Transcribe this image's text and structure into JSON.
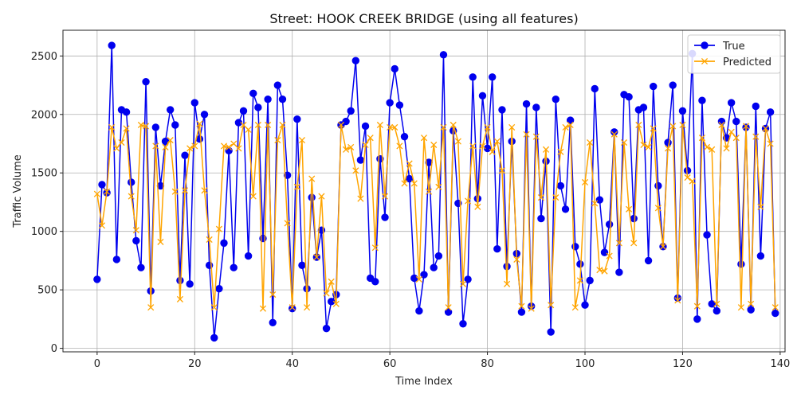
{
  "chart_data": {
    "type": "line",
    "title": "Street: HOOK CREEK BRIDGE (using all features)",
    "xlabel": "Time Index",
    "ylabel": "Traffic Volume",
    "xlim": [
      -7,
      141
    ],
    "ylim": [
      -30,
      2720
    ],
    "xticks": [
      0,
      20,
      40,
      60,
      80,
      100,
      120,
      140
    ],
    "yticks": [
      0,
      500,
      1000,
      1500,
      2000,
      2500
    ],
    "grid": true,
    "legend_position": "top-right",
    "series": [
      {
        "name": "True",
        "color": "#0000ee",
        "marker": "circle",
        "values": [
          590,
          1400,
          1330,
          2590,
          760,
          2040,
          2020,
          1420,
          920,
          690,
          2280,
          490,
          1890,
          1390,
          1770,
          2040,
          1910,
          580,
          1650,
          550,
          2100,
          1790,
          2000,
          710,
          90,
          510,
          900,
          1690,
          690,
          1930,
          2030,
          790,
          2180,
          2060,
          940,
          2130,
          220,
          2250,
          2130,
          1480,
          340,
          1960,
          710,
          510,
          1290,
          780,
          1010,
          170,
          400,
          460,
          1910,
          1940,
          2030,
          2460,
          1610,
          1900,
          600,
          570,
          1620,
          1120,
          2100,
          2390,
          2080,
          1810,
          1450,
          600,
          320,
          630,
          1590,
          690,
          790,
          2510,
          310,
          1860,
          1240,
          210,
          590,
          2320,
          1280,
          2160,
          1710,
          2320,
          850,
          2040,
          700,
          1770,
          810,
          310,
          2090,
          360,
          2060,
          1110,
          1600,
          140,
          2130,
          1390,
          1190,
          1950,
          870,
          720,
          370,
          580,
          2220,
          1270,
          820,
          1060,
          1850,
          650,
          2170,
          2150,
          1110,
          2040,
          2060,
          750,
          2240,
          1390,
          870,
          1760,
          2250,
          430,
          2030,
          1520,
          2520,
          250,
          2120,
          970,
          380,
          320,
          1940,
          1800,
          2100,
          1940,
          720,
          1890,
          330,
          2070,
          790,
          1880,
          2020,
          300
        ]
      },
      {
        "name": "Predicted",
        "color": "#ffa500",
        "marker": "x",
        "values": [
          1320,
          1050,
          1340,
          1890,
          1710,
          1760,
          1880,
          1300,
          1010,
          1910,
          1900,
          350,
          1730,
          910,
          1720,
          1780,
          1340,
          420,
          1350,
          1710,
          1730,
          1920,
          1350,
          930,
          350,
          1020,
          1730,
          1720,
          1750,
          1710,
          1910,
          1870,
          1300,
          1910,
          340,
          1910,
          460,
          1780,
          1910,
          1070,
          350,
          1380,
          1780,
          350,
          1450,
          780,
          1300,
          470,
          570,
          380,
          1910,
          1700,
          1720,
          1520,
          1280,
          1740,
          1800,
          860,
          1910,
          1300,
          1890,
          1890,
          1730,
          1410,
          1580,
          1410,
          590,
          1800,
          1340,
          1740,
          1380,
          1890,
          350,
          1910,
          1770,
          550,
          1260,
          1730,
          1210,
          1730,
          1890,
          1680,
          1770,
          1520,
          550,
          1890,
          760,
          360,
          1830,
          340,
          1810,
          1290,
          1700,
          370,
          1290,
          1680,
          1890,
          1910,
          350,
          580,
          1420,
          1760,
          1240,
          670,
          660,
          790,
          1830,
          900,
          1760,
          1190,
          900,
          1910,
          1740,
          1720,
          1880,
          1200,
          870,
          1710,
          1900,
          410,
          1910,
          1460,
          1430,
          360,
          1800,
          1720,
          1700,
          380,
          1910,
          1710,
          1850,
          1800,
          350,
          1900,
          380,
          1810,
          1210,
          1880,
          1750,
          350
        ]
      }
    ]
  }
}
